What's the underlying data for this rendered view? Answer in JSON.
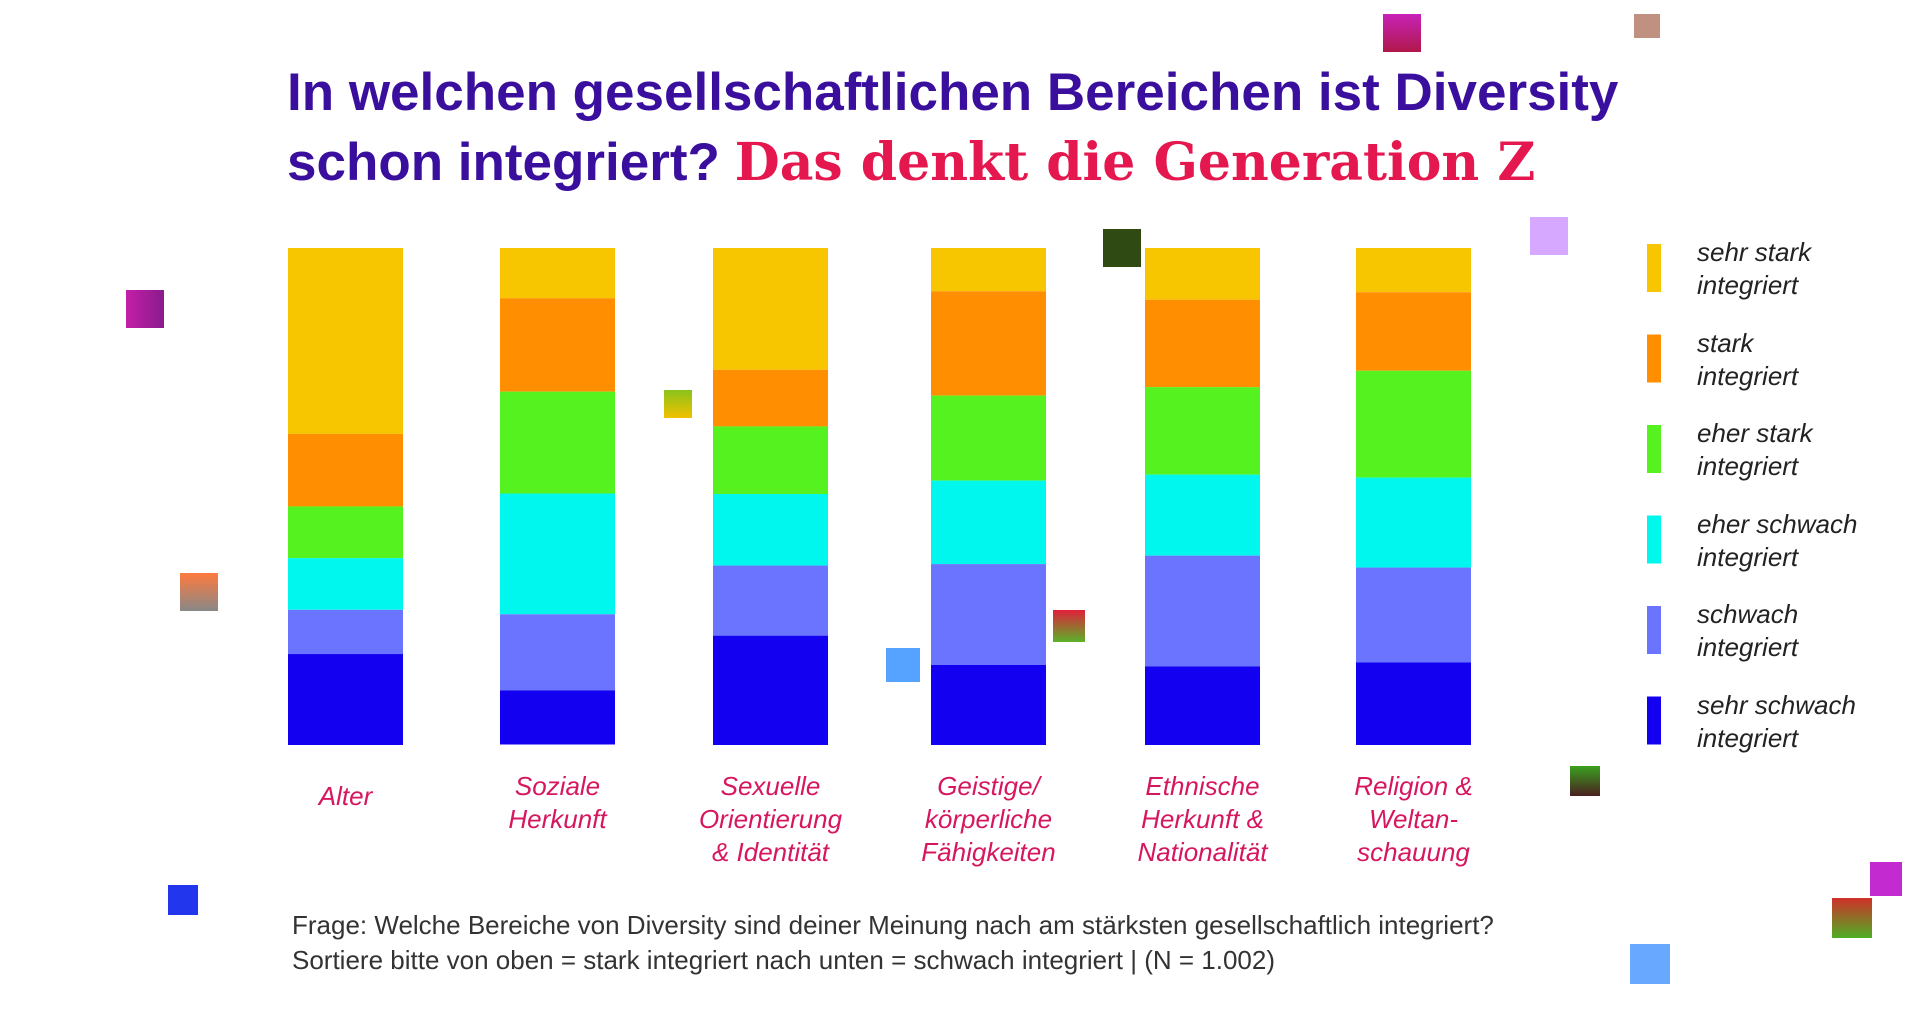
{
  "chart_data": {
    "type": "stacked_bar",
    "title": "In welchen gesellschaftlichen Bereichen ist Diversity schon integriert?",
    "subtitle": "Das denkt die Generation Z",
    "categories": [
      "Alter",
      "Soziale\nHerkunft",
      "Sexuelle\nOrientierung\n& Identität",
      "Geistige/\nkörperliche\nFähigkeiten",
      "Ethnische\nHerkunft &\nNationalität",
      "Religion &\nWeltan-\nschauung"
    ],
    "ylim": [
      0,
      100
    ],
    "series": [
      {
        "name": "sehr stark\nintegriert",
        "color": "#f7c600",
        "values": [
          37.4,
          10.1,
          24.5,
          8.7,
          10.4,
          8.9
        ]
      },
      {
        "name": "stark\nintegriert",
        "color": "#ff8f00",
        "values": [
          14.6,
          18.8,
          11.4,
          21.0,
          17.6,
          15.8
        ]
      },
      {
        "name": "eher stark\nintegriert",
        "color": "#55f21f",
        "values": [
          10.4,
          20.5,
          13.6,
          17.1,
          17.6,
          21.5
        ]
      },
      {
        "name": "eher schwach\nintegriert",
        "color": "#00f7ee",
        "values": [
          10.4,
          24.3,
          14.4,
          16.8,
          16.3,
          18.1
        ]
      },
      {
        "name": "schwach\nintegriert",
        "color": "#6b74ff",
        "values": [
          8.9,
          15.3,
          14.1,
          20.3,
          22.3,
          19.1
        ]
      },
      {
        "name": "sehr schwach\nintegriert",
        "color": "#1400f0",
        "values": [
          18.3,
          10.9,
          22.0,
          16.1,
          15.8,
          16.6
        ]
      }
    ],
    "notes": [
      "Frage: Welche Bereiche von Diversity sind deiner Meinung nach am stärksten gesellschaftlich integriert?",
      "Sortiere bitte von oben = stark integriert nach unten = schwach integriert | (N = 1.002)"
    ]
  }
}
